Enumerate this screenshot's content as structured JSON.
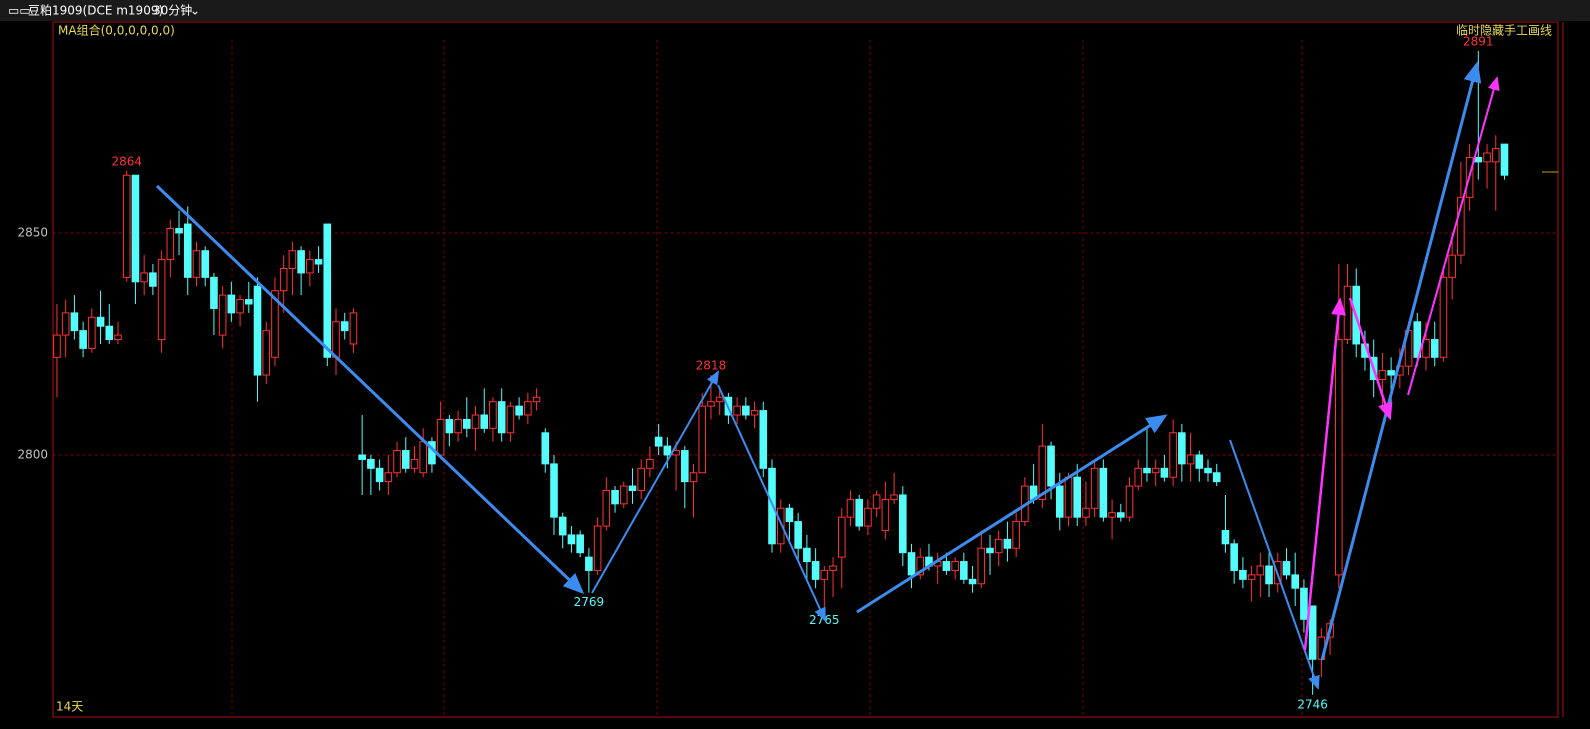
{
  "chart_data": {
    "type": "candlestick",
    "title": "豆粕1909(DCE m1909)",
    "period": "30分钟",
    "indicator": "MA组合(0,0,0,0,0,0)",
    "toggle": "临时隐藏手工画线",
    "span": "14天",
    "ylim": [
      2741,
      2897.5
    ],
    "yticks": [
      2800,
      2850
    ],
    "grid": true,
    "up_color": "#ff3232",
    "down_color": "#54fcfc",
    "candles": [
      [
        2822,
        2834,
        2813,
        2827
      ],
      [
        2827,
        2835,
        2822,
        2832
      ],
      [
        2832,
        2836,
        2826,
        2828
      ],
      [
        2828,
        2830,
        2822,
        2824
      ],
      [
        2824,
        2833,
        2823,
        2831
      ],
      [
        2831,
        2837,
        2825,
        2829
      ],
      [
        2829,
        2834,
        2825,
        2826
      ],
      [
        2826,
        2830,
        2825,
        2827
      ],
      [
        2840,
        2864,
        2839,
        2863
      ],
      [
        2863,
        2863,
        2834,
        2839
      ],
      [
        2839,
        2845,
        2836,
        2841
      ],
      [
        2841,
        2843,
        2836,
        2838
      ],
      [
        2826,
        2846,
        2823,
        2844
      ],
      [
        2844,
        2853,
        2840,
        2851
      ],
      [
        2851,
        2855,
        2845,
        2850
      ],
      [
        2852,
        2856,
        2836,
        2840
      ],
      [
        2840,
        2848,
        2838,
        2846
      ],
      [
        2846,
        2847,
        2838,
        2840
      ],
      [
        2840,
        2841,
        2827,
        2833
      ],
      [
        2827,
        2838,
        2824,
        2836
      ],
      [
        2836,
        2839,
        2830,
        2832
      ],
      [
        2832,
        2836,
        2829,
        2835
      ],
      [
        2835,
        2839,
        2832,
        2834
      ],
      [
        2838,
        2840,
        2812,
        2818
      ],
      [
        2818,
        2830,
        2816,
        2828
      ],
      [
        2822,
        2840,
        2820,
        2837
      ],
      [
        2837,
        2845,
        2832,
        2842
      ],
      [
        2842,
        2848,
        2836,
        2846
      ],
      [
        2846,
        2847,
        2836,
        2841
      ],
      [
        2841,
        2846,
        2838,
        2844
      ],
      [
        2844,
        2847,
        2841,
        2843
      ],
      [
        2852,
        2852,
        2820,
        2822
      ],
      [
        2822,
        2833,
        2818,
        2830
      ],
      [
        2830,
        2832,
        2826,
        2828
      ],
      [
        2825,
        2833,
        2823,
        2832
      ],
      [
        2800,
        2809,
        2791,
        2799
      ],
      [
        2799,
        2800,
        2791,
        2797
      ],
      [
        2797,
        2799,
        2792,
        2794
      ],
      [
        2794,
        2800,
        2791,
        2796
      ],
      [
        2796,
        2803,
        2795,
        2801
      ],
      [
        2801,
        2804,
        2796,
        2797
      ],
      [
        2797,
        2802,
        2796,
        2799
      ],
      [
        2796,
        2806,
        2795,
        2803
      ],
      [
        2803,
        2804,
        2796,
        2798
      ],
      [
        2800,
        2812,
        2800,
        2808
      ],
      [
        2808,
        2809,
        2802,
        2805
      ],
      [
        2805,
        2810,
        2803,
        2808
      ],
      [
        2808,
        2813,
        2804,
        2806
      ],
      [
        2806,
        2811,
        2801,
        2809
      ],
      [
        2809,
        2815,
        2805,
        2806
      ],
      [
        2806,
        2813,
        2803,
        2812
      ],
      [
        2812,
        2815,
        2803,
        2805
      ],
      [
        2805,
        2812,
        2803,
        2811
      ],
      [
        2811,
        2813,
        2808,
        2809
      ],
      [
        2809,
        2814,
        2807,
        2812
      ],
      [
        2812,
        2815,
        2810,
        2813
      ],
      [
        2805,
        2806,
        2796,
        2798
      ],
      [
        2798,
        2800,
        2782,
        2786
      ],
      [
        2786,
        2787,
        2779,
        2782
      ],
      [
        2782,
        2784,
        2778,
        2780
      ],
      [
        2782,
        2783,
        2777,
        2778
      ],
      [
        2777,
        2779,
        2769,
        2774
      ],
      [
        2774,
        2786,
        2773,
        2784
      ],
      [
        2784,
        2795,
        2783,
        2792
      ],
      [
        2792,
        2793,
        2787,
        2789
      ],
      [
        2789,
        2794,
        2788,
        2793
      ],
      [
        2793,
        2797,
        2789,
        2792
      ],
      [
        2792,
        2799,
        2790,
        2797
      ],
      [
        2797,
        2802,
        2795,
        2799
      ],
      [
        2804,
        2807,
        2800,
        2802
      ],
      [
        2802,
        2804,
        2797,
        2800
      ],
      [
        2800,
        2803,
        2792,
        2801
      ],
      [
        2801,
        2802,
        2788,
        2794
      ],
      [
        2794,
        2798,
        2786,
        2796
      ],
      [
        2796,
        2814,
        2796,
        2811
      ],
      [
        2811,
        2818,
        2808,
        2812
      ],
      [
        2812,
        2815,
        2809,
        2813
      ],
      [
        2813,
        2814,
        2807,
        2809
      ],
      [
        2809,
        2813,
        2807,
        2811
      ],
      [
        2811,
        2813,
        2808,
        2809
      ],
      [
        2809,
        2812,
        2806,
        2810
      ],
      [
        2810,
        2812,
        2795,
        2797
      ],
      [
        2797,
        2799,
        2778,
        2780
      ],
      [
        2780,
        2790,
        2778,
        2788
      ],
      [
        2788,
        2789,
        2780,
        2785
      ],
      [
        2785,
        2787,
        2776,
        2779
      ],
      [
        2779,
        2782,
        2772,
        2776
      ],
      [
        2776,
        2779,
        2770,
        2772
      ],
      [
        2772,
        2775,
        2765,
        2774
      ],
      [
        2774,
        2777,
        2768,
        2775
      ],
      [
        2777,
        2788,
        2770,
        2786
      ],
      [
        2786,
        2792,
        2784,
        2790
      ],
      [
        2790,
        2791,
        2783,
        2784
      ],
      [
        2784,
        2790,
        2782,
        2788
      ],
      [
        2788,
        2792,
        2786,
        2791
      ],
      [
        2783,
        2794,
        2781,
        2790
      ],
      [
        2790,
        2796,
        2789,
        2791
      ],
      [
        2791,
        2793,
        2775,
        2778
      ],
      [
        2778,
        2780,
        2770,
        2773
      ],
      [
        2773,
        2779,
        2772,
        2777
      ],
      [
        2777,
        2780,
        2774,
        2775
      ],
      [
        2775,
        2778,
        2771,
        2776
      ],
      [
        2776,
        2778,
        2773,
        2774
      ],
      [
        2774,
        2777,
        2772,
        2776
      ],
      [
        2776,
        2778,
        2771,
        2772
      ],
      [
        2772,
        2775,
        2769,
        2771
      ],
      [
        2771,
        2783,
        2770,
        2779
      ],
      [
        2779,
        2782,
        2773,
        2778
      ],
      [
        2778,
        2783,
        2775,
        2781
      ],
      [
        2781,
        2785,
        2776,
        2779
      ],
      [
        2779,
        2787,
        2777,
        2785
      ],
      [
        2785,
        2795,
        2784,
        2793
      ],
      [
        2793,
        2798,
        2789,
        2790
      ],
      [
        2790,
        2807,
        2788,
        2802
      ],
      [
        2802,
        2803,
        2790,
        2793
      ],
      [
        2793,
        2796,
        2783,
        2786
      ],
      [
        2786,
        2796,
        2784,
        2795
      ],
      [
        2795,
        2798,
        2784,
        2786
      ],
      [
        2786,
        2794,
        2784,
        2788
      ],
      [
        2788,
        2799,
        2786,
        2797
      ],
      [
        2797,
        2799,
        2785,
        2786
      ],
      [
        2786,
        2790,
        2781,
        2787
      ],
      [
        2787,
        2789,
        2785,
        2786
      ],
      [
        2786,
        2795,
        2785,
        2793
      ],
      [
        2793,
        2799,
        2792,
        2797
      ],
      [
        2797,
        2806,
        2794,
        2796
      ],
      [
        2796,
        2799,
        2793,
        2797
      ],
      [
        2797,
        2800,
        2794,
        2795
      ],
      [
        2795,
        2808,
        2793,
        2805
      ],
      [
        2805,
        2807,
        2794,
        2798
      ],
      [
        2798,
        2805,
        2794,
        2800
      ],
      [
        2800,
        2801,
        2794,
        2797
      ],
      [
        2797,
        2799,
        2794,
        2796
      ],
      [
        2796,
        2798,
        2793,
        2794
      ],
      [
        2783,
        2791,
        2778,
        2780
      ],
      [
        2780,
        2781,
        2771,
        2774
      ],
      [
        2774,
        2777,
        2770,
        2772
      ],
      [
        2772,
        2775,
        2767,
        2773
      ],
      [
        2773,
        2778,
        2768,
        2775
      ],
      [
        2775,
        2778,
        2768,
        2771
      ],
      [
        2771,
        2778,
        2769,
        2776
      ],
      [
        2776,
        2779,
        2772,
        2773
      ],
      [
        2773,
        2778,
        2766,
        2770
      ],
      [
        2770,
        2772,
        2760,
        2763
      ],
      [
        2766,
        2766,
        2746,
        2754
      ],
      [
        2754,
        2761,
        2750,
        2759
      ],
      [
        2759,
        2763,
        2755,
        2762
      ],
      [
        2773,
        2843,
        2770,
        2826
      ],
      [
        2826,
        2843,
        2825,
        2838
      ],
      [
        2838,
        2842,
        2822,
        2825
      ],
      [
        2825,
        2828,
        2819,
        2822
      ],
      [
        2822,
        2826,
        2813,
        2817
      ],
      [
        2817,
        2823,
        2811,
        2819
      ],
      [
        2819,
        2822,
        2812,
        2818
      ],
      [
        2818,
        2824,
        2815,
        2820
      ],
      [
        2820,
        2830,
        2818,
        2828
      ],
      [
        2830,
        2832,
        2820,
        2822
      ],
      [
        2822,
        2830,
        2819,
        2826
      ],
      [
        2826,
        2830,
        2820,
        2822
      ],
      [
        2822,
        2842,
        2821,
        2840
      ],
      [
        2840,
        2850,
        2835,
        2845
      ],
      [
        2845,
        2866,
        2843,
        2858
      ],
      [
        2858,
        2870,
        2855,
        2867
      ],
      [
        2867,
        2891,
        2862,
        2866
      ],
      [
        2866,
        2870,
        2860,
        2868
      ],
      [
        2866,
        2872,
        2855,
        2869
      ],
      [
        2870,
        2870,
        2862,
        2863
      ]
    ]
  }
}
